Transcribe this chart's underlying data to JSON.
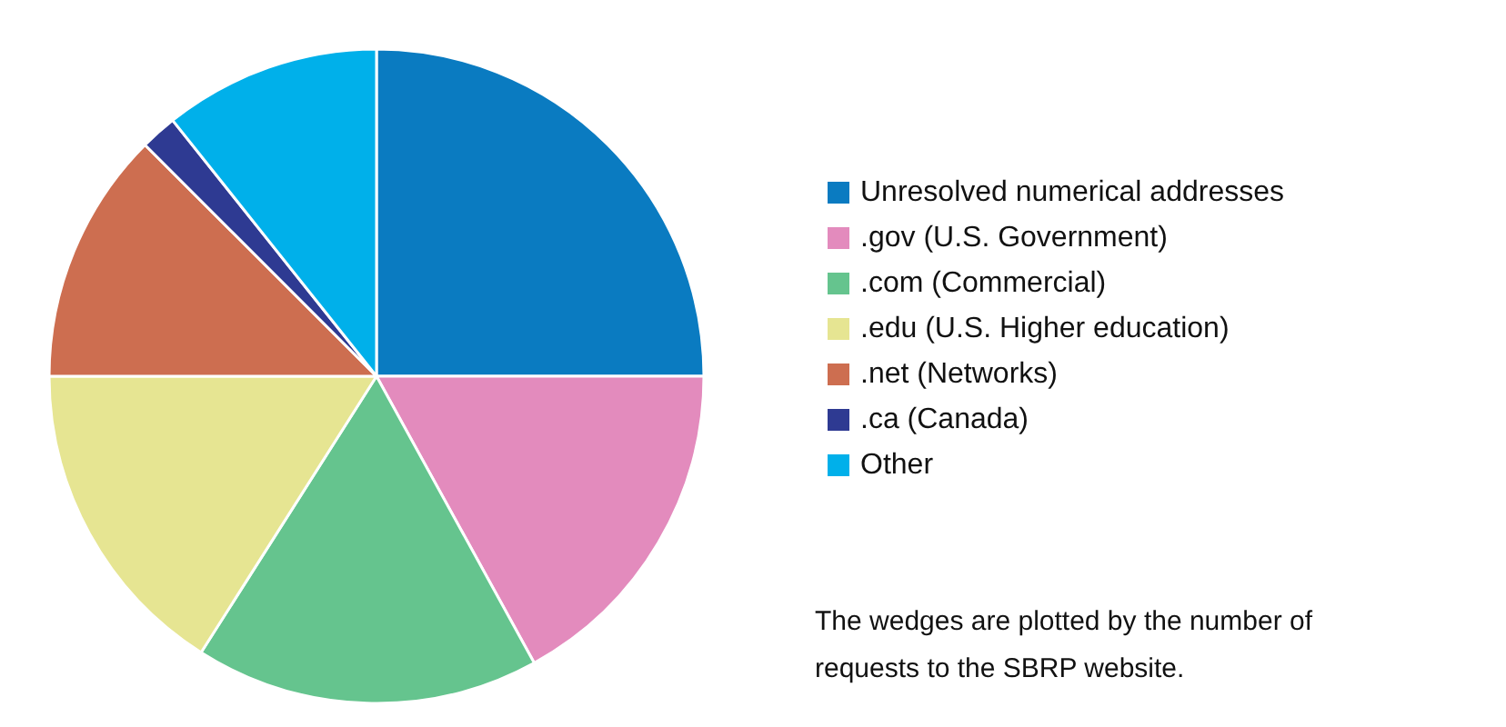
{
  "chart_data": {
    "type": "pie",
    "categories": [
      "Unresolved numerical addresses",
      ".gov (U.S. Government)",
      ".com (Commercial)",
      ".edu (U.S. Higher education)",
      ".net (Networks)",
      ".ca (Canada)",
      "Other"
    ],
    "values": [
      25,
      17,
      17,
      16,
      12.5,
      1.8,
      10.7
    ],
    "colors": [
      "#0a7bc1",
      "#e38bbd",
      "#65c48e",
      "#e6e592",
      "#cd6e50",
      "#2e3a92",
      "#00b0ea"
    ],
    "legend": "right",
    "annotations": [
      "The wedges are plotted by the number of requests to the SBRP website."
    ]
  }
}
